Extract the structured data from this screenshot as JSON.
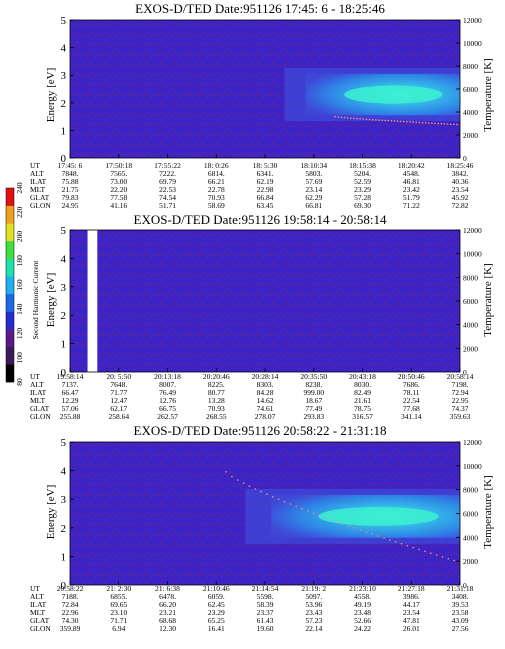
{
  "colors": {
    "background": "#3a23c8",
    "low_band": "#3f4ad8",
    "mid_band": "#2f7fe6",
    "high_band": "#33b7e8",
    "peak_band": "#3cf0d0",
    "noise": "#a52a3a",
    "temperature_trace": "#ff8c8c"
  },
  "colorbar": {
    "label": "Second Harmonic Current",
    "ticks": [
      "80",
      "100",
      "120",
      "140",
      "160",
      "180",
      "200",
      "220",
      "240"
    ],
    "colors": [
      "#000000",
      "#3a1a5a",
      "#5a1a8a",
      "#2a2ad0",
      "#1a6ae8",
      "#20b0f0",
      "#20e0b0",
      "#40e040",
      "#e0e020",
      "#f0a020",
      "#e01010"
    ]
  },
  "chart_data": [
    {
      "type": "heatmap",
      "title": "EXOS-D/TED   Date:951126  17:45: 6 - 18:25:46",
      "ylabel": "Energy [eV]",
      "ylabel2": "Temperature [K]",
      "ylim": [
        0,
        5
      ],
      "ylim2": [
        0,
        12000
      ],
      "yticks": [
        "0",
        "1",
        "2",
        "3",
        "4",
        "5"
      ],
      "yticks2": [
        "0",
        "2000",
        "4000",
        "6000",
        "8000",
        "10000",
        "12000"
      ],
      "row_labels": [
        "UT",
        "ALT",
        "ILAT",
        "MLT",
        "GLAT",
        "GLON"
      ],
      "columns": [
        [
          "17:45: 6",
          "7848.",
          "75.88",
          "21.75",
          "79.83",
          "24.95"
        ],
        [
          "17:50:18",
          "7565.",
          "73.00",
          "22.20",
          "77.58",
          "41.16"
        ],
        [
          "17:55:22",
          "7222.",
          "69.79",
          "22.53",
          "74.54",
          "51.71"
        ],
        [
          "18: 0:26",
          "6814.",
          "66.21",
          "22.78",
          "70.93",
          "58.69"
        ],
        [
          "18: 5:30",
          "6341.",
          "62.19",
          "22.98",
          "66.84",
          "63.45"
        ],
        [
          "18:10:34",
          "5803.",
          "57.69",
          "23.14",
          "62.29",
          "66.81"
        ],
        [
          "18:15:38",
          "5204.",
          "52.59",
          "23.29",
          "57.28",
          "69.30"
        ],
        [
          "18:20:42",
          "4548.",
          "46.81",
          "23.42",
          "51.79",
          "71.22"
        ],
        [
          "18:25:46",
          "3842.",
          "40.36",
          "23.54",
          "45.92",
          "72.82"
        ]
      ],
      "band": {
        "start": 0.55,
        "end": 1.0,
        "energy_center": 2.3,
        "energy_halfwidth": 0.75
      },
      "temperature_trace": {
        "start": 0.68,
        "end": 1.0,
        "t_start": 3600,
        "t_end": 2900
      }
    },
    {
      "type": "heatmap",
      "title": "EXOS-D/TED   Date:951126  19:58:14 - 20:58:14",
      "ylabel": "Energy [eV]",
      "ylabel2": "Temperature [K]",
      "ylim": [
        0,
        5
      ],
      "ylim2": [
        0,
        12000
      ],
      "yticks": [
        "0",
        "1",
        "2",
        "3",
        "4",
        "5"
      ],
      "yticks2": [
        "0",
        "2000",
        "4000",
        "6000",
        "8000",
        "10000",
        "12000"
      ],
      "row_labels": [
        "UT",
        "ALT",
        "ILAT",
        "MLT",
        "GLAT",
        "GLON"
      ],
      "columns": [
        [
          "19:58:14",
          "7137.",
          "66.47",
          "12.29",
          "57.06",
          "255.88"
        ],
        [
          "20: 5:50",
          "7648.",
          "71.77",
          "12.47",
          "62.17",
          "258.64"
        ],
        [
          "20:13:18",
          "8007.",
          "76.49",
          "12.76",
          "66.75",
          "262.57"
        ],
        [
          "20:20:46",
          "8225.",
          "80.77",
          "13.28",
          "70.93",
          "268.55"
        ],
        [
          "20:28:14",
          "8303.",
          "84.28",
          "14.62",
          "74.61",
          "278.07"
        ],
        [
          "20:35:50",
          "8238.",
          "999.00",
          "18.67",
          "77.49",
          "293.83"
        ],
        [
          "20:43:18",
          "8030.",
          "82.49",
          "21.61",
          "78.75",
          "316.57"
        ],
        [
          "20:50:46",
          "7686.",
          "78.11",
          "22.54",
          "77.68",
          "341.14"
        ],
        [
          "20:58:14",
          "7198.",
          "72.94",
          "22.95",
          "74.37",
          "359.63"
        ]
      ],
      "gap": {
        "start": 0.045,
        "end": 0.07
      },
      "band": null,
      "temperature_trace": null
    },
    {
      "type": "heatmap",
      "title": "EXOS-D/TED   Date:951126  20:58:22 - 21:31:18",
      "ylabel": "Energy [eV]",
      "ylabel2": "Temperature [K]",
      "ylim": [
        0,
        5
      ],
      "ylim2": [
        0,
        12000
      ],
      "yticks": [
        "0",
        "1",
        "2",
        "3",
        "4",
        "5"
      ],
      "yticks2": [
        "0",
        "2000",
        "4000",
        "6000",
        "8000",
        "10000",
        "12000"
      ],
      "row_labels": [
        "UT",
        "ALT",
        "ILAT",
        "MLT",
        "GLAT",
        "GLON"
      ],
      "columns": [
        [
          "20:58:22",
          "7188.",
          "72.84",
          "22.96",
          "74.30",
          "359.89"
        ],
        [
          "21: 2:30",
          "6855.",
          "69.65",
          "23.10",
          "71.71",
          "6.94"
        ],
        [
          "21: 6:38",
          "6478.",
          "66.20",
          "23.21",
          "68.68",
          "12.30"
        ],
        [
          "21:10:46",
          "6059.",
          "62.45",
          "23.29",
          "65.25",
          "16.41"
        ],
        [
          "21:14:54",
          "5598.",
          "58.39",
          "23.37",
          "61.43",
          "19.60"
        ],
        [
          "21:19: 2",
          "5097.",
          "53.96",
          "23.43",
          "57.23",
          "22.14"
        ],
        [
          "21:23:10",
          "4558.",
          "49.19",
          "23.48",
          "52.66",
          "24.22"
        ],
        [
          "21:27:18",
          "3986.",
          "44.17",
          "23.54",
          "47.81",
          "26.01"
        ],
        [
          "21:31:18",
          "3408.",
          "39.53",
          "23.58",
          "43.09",
          "27.56"
        ]
      ],
      "band": {
        "start": 0.45,
        "end": 1.0,
        "energy_center": 2.4,
        "energy_halfwidth": 0.75
      },
      "temperature_trace": {
        "start": 0.4,
        "end": 1.0,
        "t_start": 9500,
        "t_end": 1900
      }
    }
  ]
}
